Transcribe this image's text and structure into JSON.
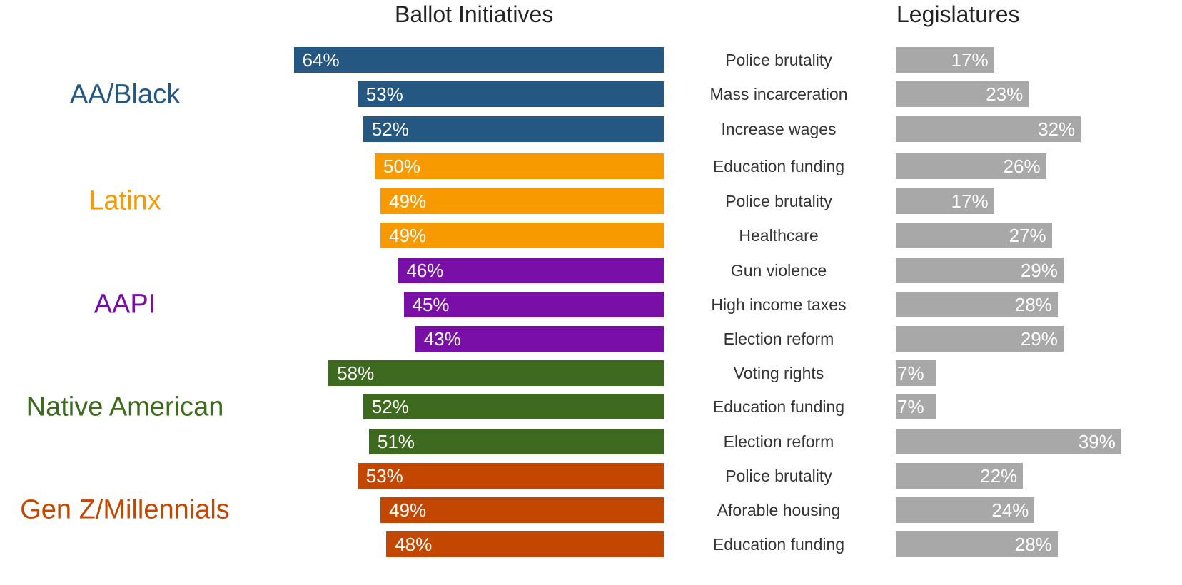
{
  "chart_data": {
    "type": "bar",
    "panels": [
      "Ballot Initiatives",
      "Legislatures"
    ],
    "groups": [
      {
        "name": "AA/Black",
        "color": "#255783"
      },
      {
        "name": "Latinx",
        "color": "#f79a00"
      },
      {
        "name": "AAPI",
        "color": "#7a0fa8"
      },
      {
        "name": "Native American",
        "color": "#3d6a1e"
      },
      {
        "name": "Gen Z/Millennials",
        "color": "#c44700"
      }
    ],
    "legislature_color": "#a8a8a8",
    "rows": [
      {
        "group": 0,
        "issue": "Police brutality",
        "ballot": 64,
        "legislature": 17
      },
      {
        "group": 0,
        "issue": "Mass incarceration",
        "ballot": 53,
        "legislature": 23
      },
      {
        "group": 0,
        "issue": "Increase wages",
        "ballot": 52,
        "legislature": 32
      },
      {
        "group": 1,
        "issue": "Education funding",
        "ballot": 50,
        "legislature": 26
      },
      {
        "group": 1,
        "issue": "Police brutality",
        "ballot": 49,
        "legislature": 17
      },
      {
        "group": 1,
        "issue": "Healthcare",
        "ballot": 49,
        "legislature": 27
      },
      {
        "group": 2,
        "issue": "Gun violence",
        "ballot": 46,
        "legislature": 29
      },
      {
        "group": 2,
        "issue": "High income taxes",
        "ballot": 45,
        "legislature": 28
      },
      {
        "group": 2,
        "issue": "Election reform",
        "ballot": 43,
        "legislature": 29
      },
      {
        "group": 3,
        "issue": "Voting rights",
        "ballot": 58,
        "legislature": 7
      },
      {
        "group": 3,
        "issue": "Education funding",
        "ballot": 52,
        "legislature": 7
      },
      {
        "group": 3,
        "issue": "Election reform",
        "ballot": 51,
        "legislature": 39
      },
      {
        "group": 4,
        "issue": "Police brutality",
        "ballot": 53,
        "legislature": 22
      },
      {
        "group": 4,
        "issue": "Aforable housing",
        "ballot": 49,
        "legislature": 24
      },
      {
        "group": 4,
        "issue": "Education funding",
        "ballot": 48,
        "legislature": 28
      }
    ],
    "unit": "%"
  }
}
